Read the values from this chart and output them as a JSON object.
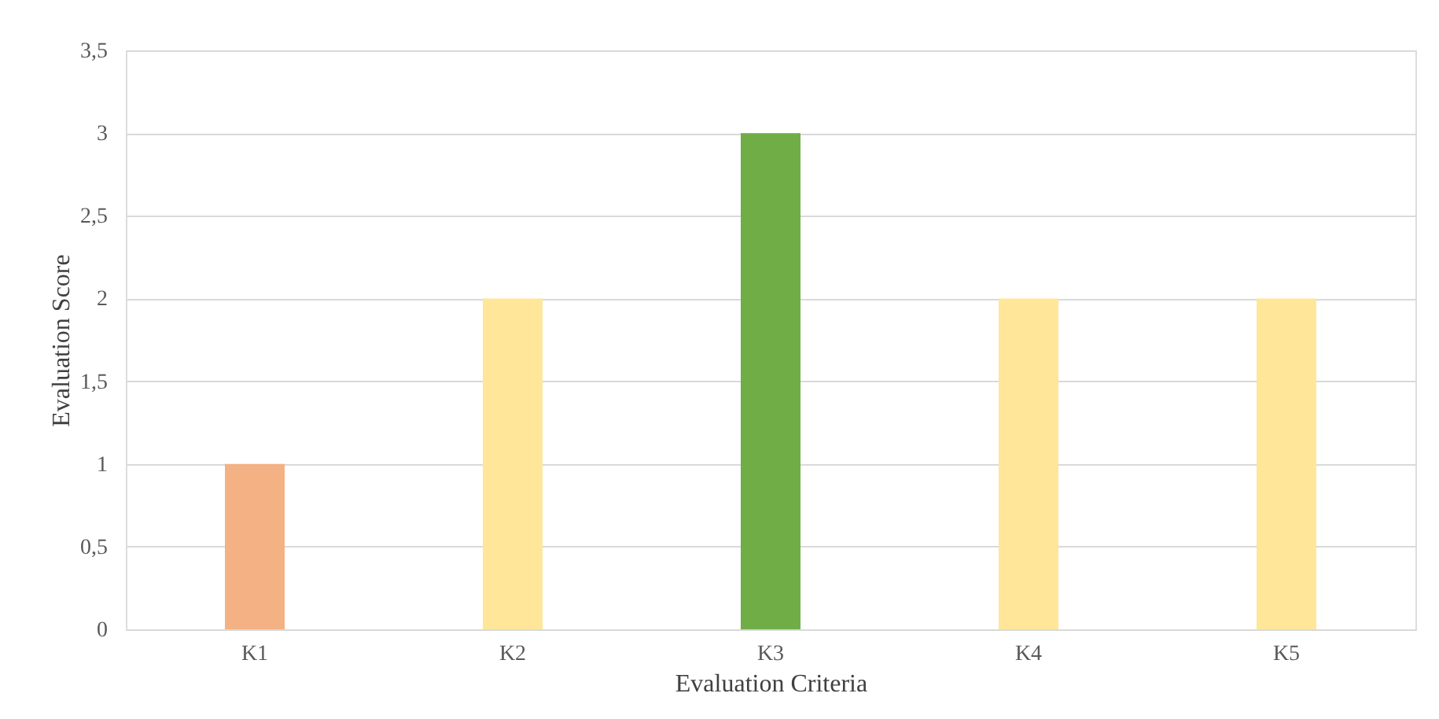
{
  "chart_data": {
    "type": "bar",
    "categories": [
      "K1",
      "K2",
      "K3",
      "K4",
      "K5"
    ],
    "values": [
      1,
      2,
      3,
      2,
      2
    ],
    "colors": [
      "#f4b183",
      "#ffe699",
      "#70ad47",
      "#ffe699",
      "#ffe699"
    ],
    "xlabel": "Evaluation Criteria",
    "ylabel": "Evaluation Score",
    "ylim": [
      0,
      3.5
    ],
    "yticks": [
      0,
      {
        "value": 0.5,
        "label": "0,5"
      },
      1,
      {
        "value": 1.5,
        "label": "1,5"
      },
      2,
      {
        "value": 2.5,
        "label": "2,5"
      },
      3,
      {
        "value": 3.5,
        "label": "3,5"
      }
    ],
    "grid": "y"
  }
}
